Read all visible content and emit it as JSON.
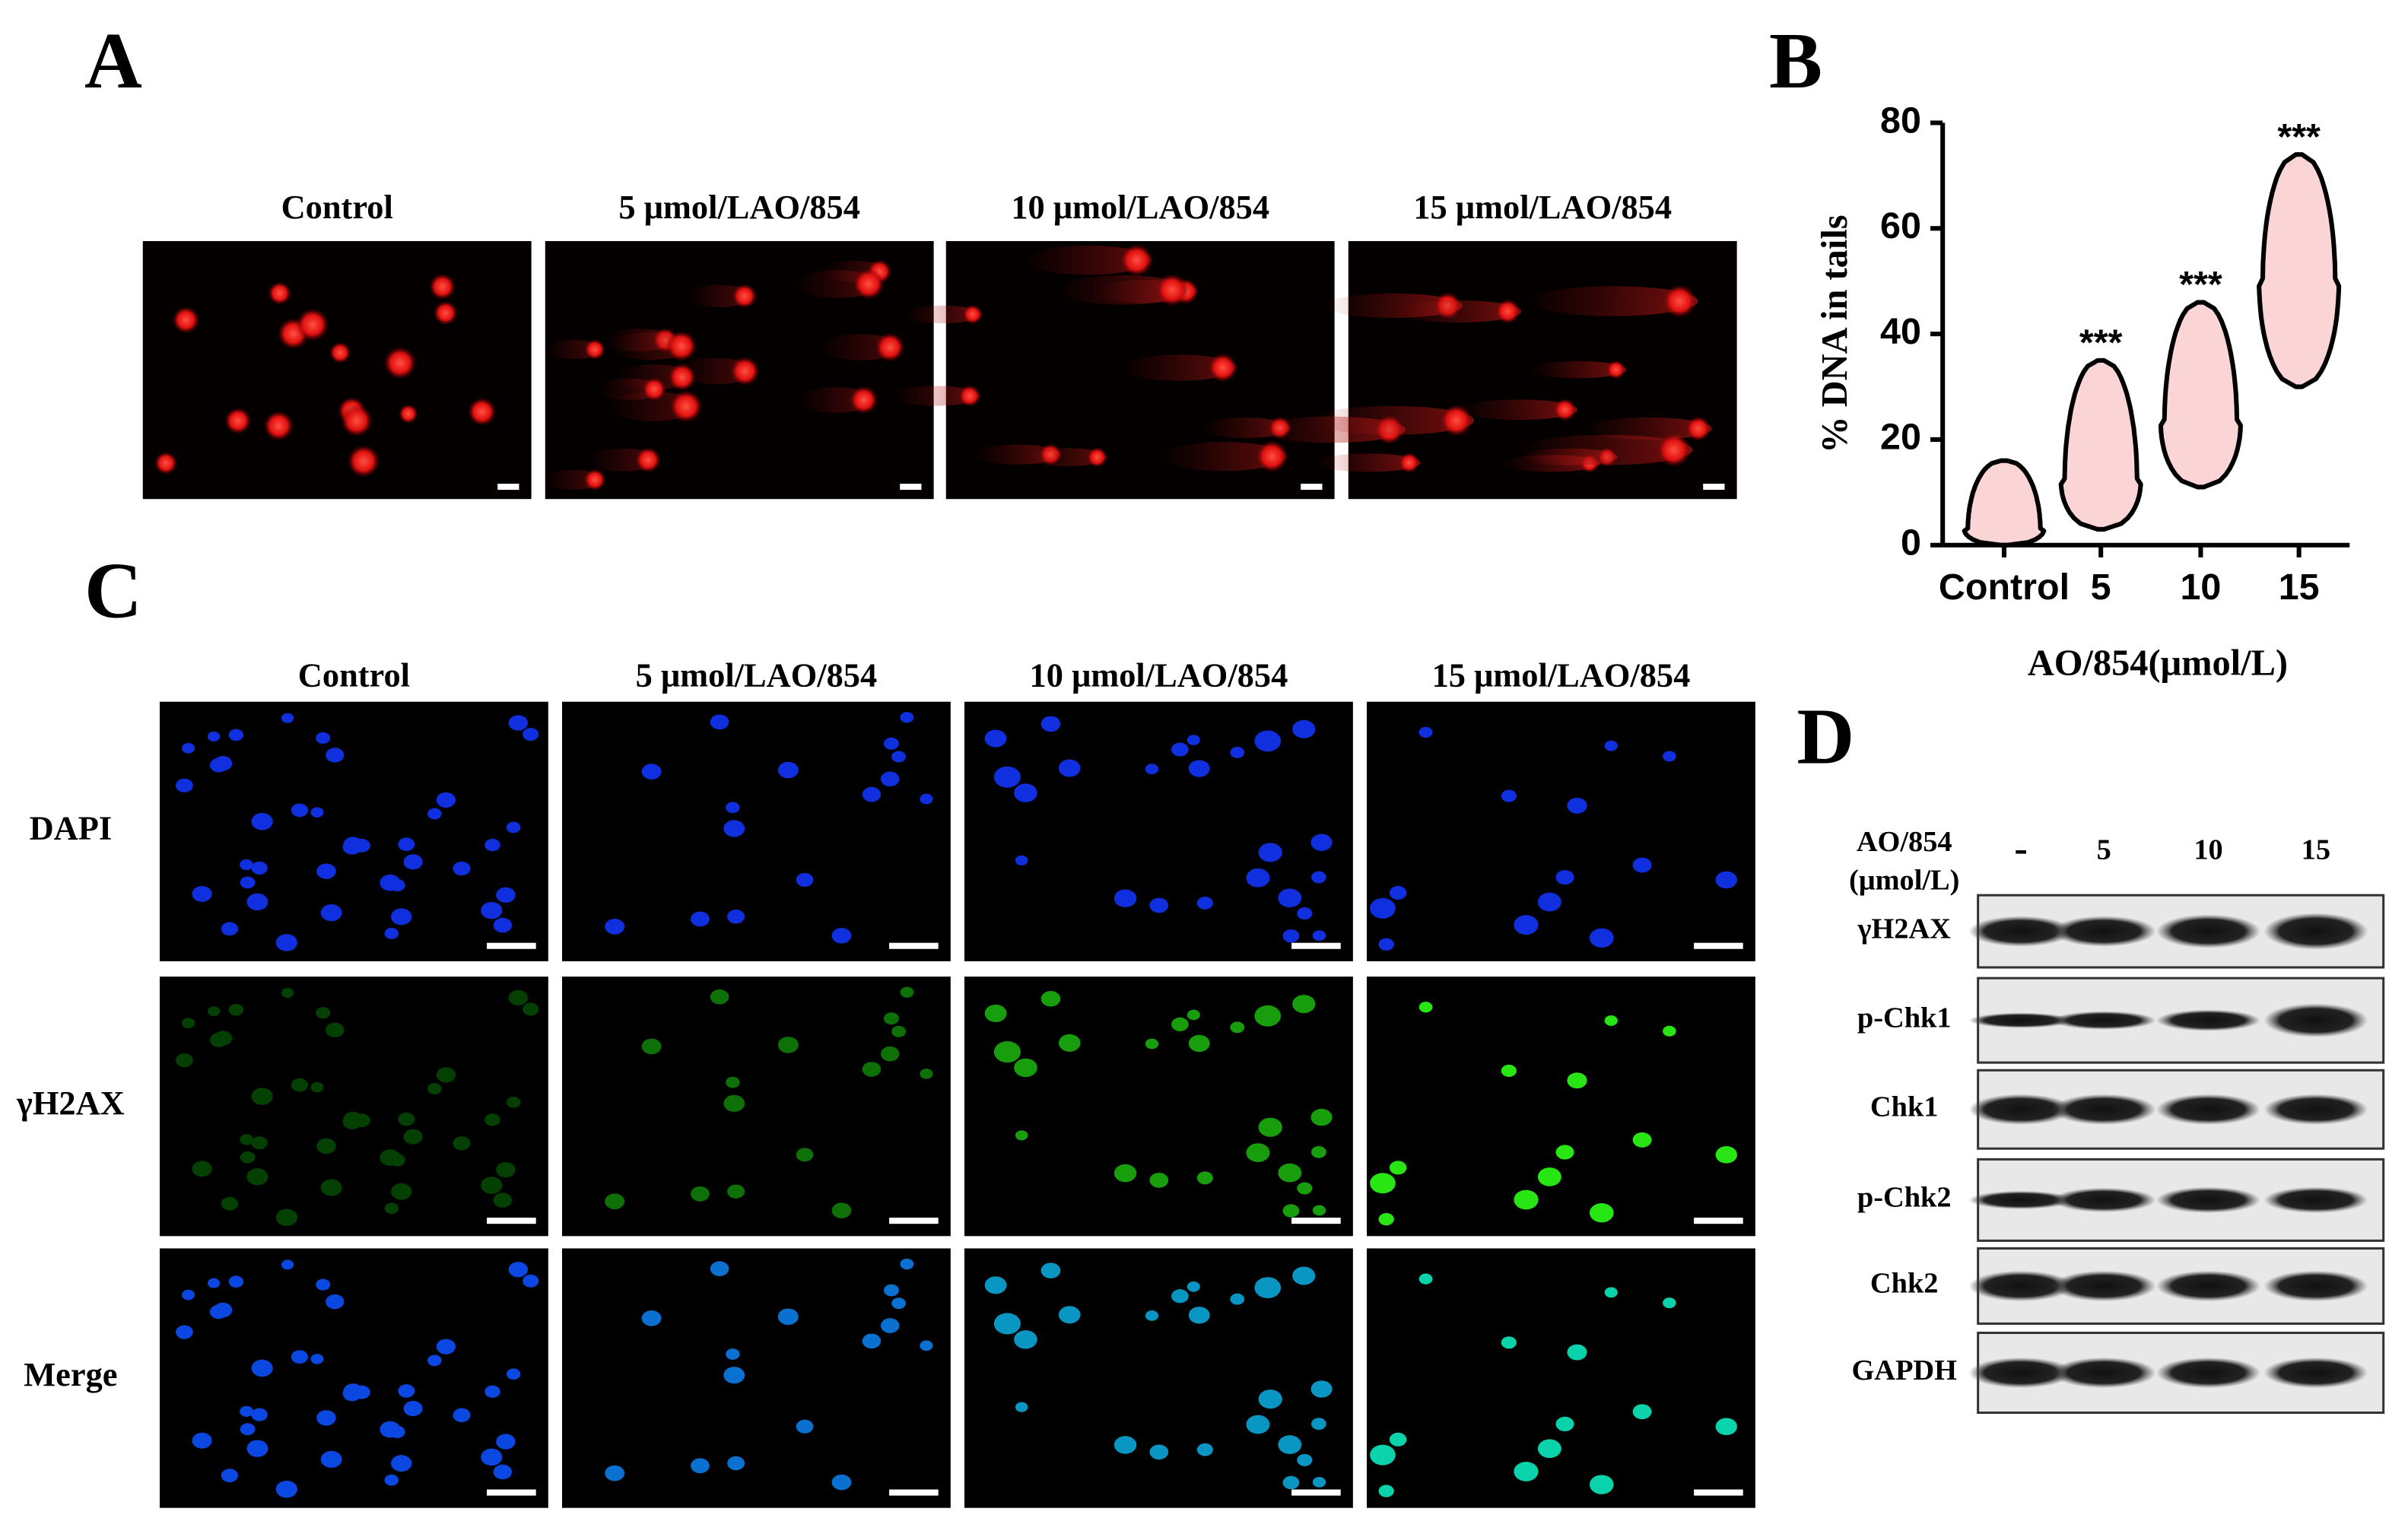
{
  "panel_labels": [
    "A",
    "B",
    "C",
    "D"
  ],
  "panel_a": {
    "columns": [
      "Control",
      "5 μmol/LAO/854",
      "10 μmol/LAO/854",
      "15 μmol/LAO/854"
    ]
  },
  "chart_data": {
    "type": "violin",
    "y_label": "% DNA in tails",
    "x_label": "AO/854(μmol/L)",
    "categories": [
      "Control",
      "5",
      "10",
      "15"
    ],
    "min": [
      0,
      3,
      11,
      30
    ],
    "median": [
      3,
      12,
      23,
      50
    ],
    "max": [
      16,
      35,
      46,
      74
    ],
    "significance": [
      null,
      "***",
      "***",
      "***"
    ],
    "color": "#e8141b",
    "ylim": [
      0,
      80
    ],
    "yticks": [
      0,
      20,
      40,
      60,
      80
    ]
  },
  "panel_c": {
    "columns": [
      "Control",
      "5 μmol/LAO/854",
      "10 μmol/LAO/854",
      "15 μmol/LAO/854"
    ],
    "rows": [
      "DAPI",
      "γH2AX",
      "Merge"
    ]
  },
  "panel_d": {
    "header": [
      "AO/854",
      "(μmol/L)"
    ],
    "lanes": [
      "-",
      "5",
      "10",
      "15"
    ],
    "rows": [
      "γH2AX",
      "p-Chk1",
      "Chk1",
      "p-Chk2",
      "Chk2",
      "GAPDH"
    ]
  }
}
